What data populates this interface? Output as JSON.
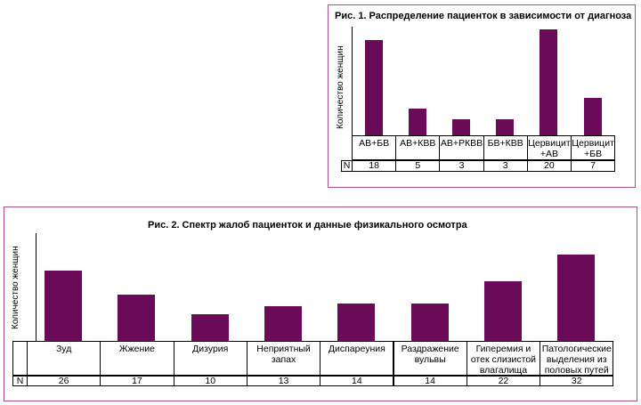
{
  "chart_data": [
    {
      "type": "bar",
      "title": "Рис. 1. Распределение пациенток в зависимости от диагноза",
      "ylabel": "Количество женщин",
      "categories": [
        "АВ+БВ",
        "АВ+КВВ",
        "АВ+РКВВ",
        "БВ+КВВ",
        "Цервицит +АВ",
        "Цервицит +БВ"
      ],
      "values": [
        18,
        5,
        3,
        3,
        20,
        7
      ],
      "row_label": "N",
      "color": "#6b0a56"
    },
    {
      "type": "bar",
      "title": "Рис. 2. Спектр жалоб пациенток и данные физикального осмотра",
      "ylabel": "Количество женщин",
      "categories": [
        "Зуд",
        "Жжение",
        "Дизурия",
        "Неприятный запах",
        "Диспареуния",
        "Раздражение вульвы",
        "Гиперемия и отек слизистой влагалища",
        "Патологические выделения из половых путей"
      ],
      "values": [
        26,
        17,
        10,
        13,
        14,
        14,
        22,
        32
      ],
      "row_label": "N",
      "color": "#6b0a56"
    }
  ]
}
